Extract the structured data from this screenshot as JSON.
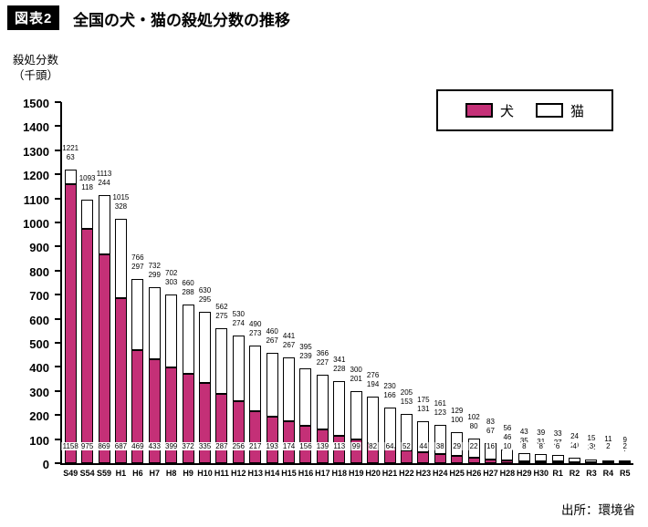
{
  "header": {
    "badge": "図表2",
    "title": "全国の犬・猫の殺処分数の推移"
  },
  "chart_data": {
    "type": "bar",
    "stacked": true,
    "title": "全国の犬・猫の殺処分数の推移",
    "ylabel": "殺処分数（千頭）",
    "ylabel_display": "殺処分数\n（千頭）",
    "ylim": [
      0,
      1500
    ],
    "ytick_step": 100,
    "grid": false,
    "legend_position": "top-right",
    "categories": [
      "S49",
      "S54",
      "S59",
      "H1",
      "H6",
      "H7",
      "H8",
      "H9",
      "H10",
      "H11",
      "H12",
      "H13",
      "H14",
      "H15",
      "H16",
      "H17",
      "H18",
      "H19",
      "H20",
      "H21",
      "H22",
      "H23",
      "H24",
      "H25",
      "H26",
      "H27",
      "H28",
      "H29",
      "H30",
      "R1",
      "R2",
      "R3",
      "R4",
      "R5"
    ],
    "series": [
      {
        "name": "犬",
        "color": "#c43077",
        "values": [
          1158,
          975,
          869,
          687,
          469,
          433,
          399,
          372,
          335,
          287,
          256,
          217,
          193,
          174,
          156,
          139,
          113,
          99,
          82,
          64,
          52,
          44,
          38,
          29,
          22,
          16,
          10,
          8,
          8,
          6,
          4,
          3,
          2,
          2
        ]
      },
      {
        "name": "猫",
        "color": "#ffffff",
        "values": [
          63,
          118,
          244,
          328,
          297,
          299,
          303,
          288,
          295,
          275,
          274,
          273,
          267,
          267,
          239,
          227,
          228,
          201,
          194,
          166,
          153,
          131,
          123,
          100,
          80,
          67,
          46,
          35,
          31,
          27,
          20,
          12,
          9,
          7
        ]
      }
    ],
    "total_labels": [
      1221,
      1093,
      1113,
      1015,
      766,
      732,
      702,
      660,
      630,
      562,
      530,
      490,
      460,
      441,
      395,
      366,
      341,
      300,
      276,
      230,
      205,
      175,
      161,
      129,
      102,
      83,
      56,
      43,
      39,
      33,
      24,
      15,
      11,
      9
    ]
  },
  "footer": {
    "source": "出所：環境省"
  },
  "colors": {
    "dog": "#c43077",
    "cat": "#ffffff",
    "axis": "#000000"
  }
}
